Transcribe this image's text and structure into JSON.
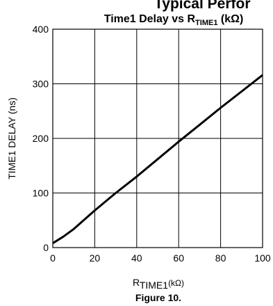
{
  "page": {
    "cut_heading": "Typical Perfor",
    "figure_caption": "Figure 10."
  },
  "chart_data": {
    "type": "line",
    "title_main": "Time1 Delay vs R",
    "title_sub": "TIME1",
    "title_unit": " (kΩ)",
    "xlabel_main": "R",
    "xlabel_sub": "TIME1",
    "xlabel_unit": "(kΩ)",
    "ylabel": "TIME1 DELAY (ns)",
    "xlim": [
      0,
      100
    ],
    "ylim": [
      0,
      400
    ],
    "x_ticks": [
      0,
      20,
      40,
      60,
      80,
      100
    ],
    "y_ticks": [
      0,
      100,
      200,
      300,
      400
    ],
    "grid": true,
    "series": [
      {
        "x": [
          0,
          5,
          10,
          20,
          30,
          40,
          50,
          60,
          70,
          80,
          90,
          100
        ],
        "values": [
          8,
          20,
          34,
          68,
          100,
          130,
          162,
          194,
          225,
          256,
          286,
          316
        ]
      }
    ],
    "colors": {
      "line": "#000000",
      "grid": "#000000"
    }
  }
}
